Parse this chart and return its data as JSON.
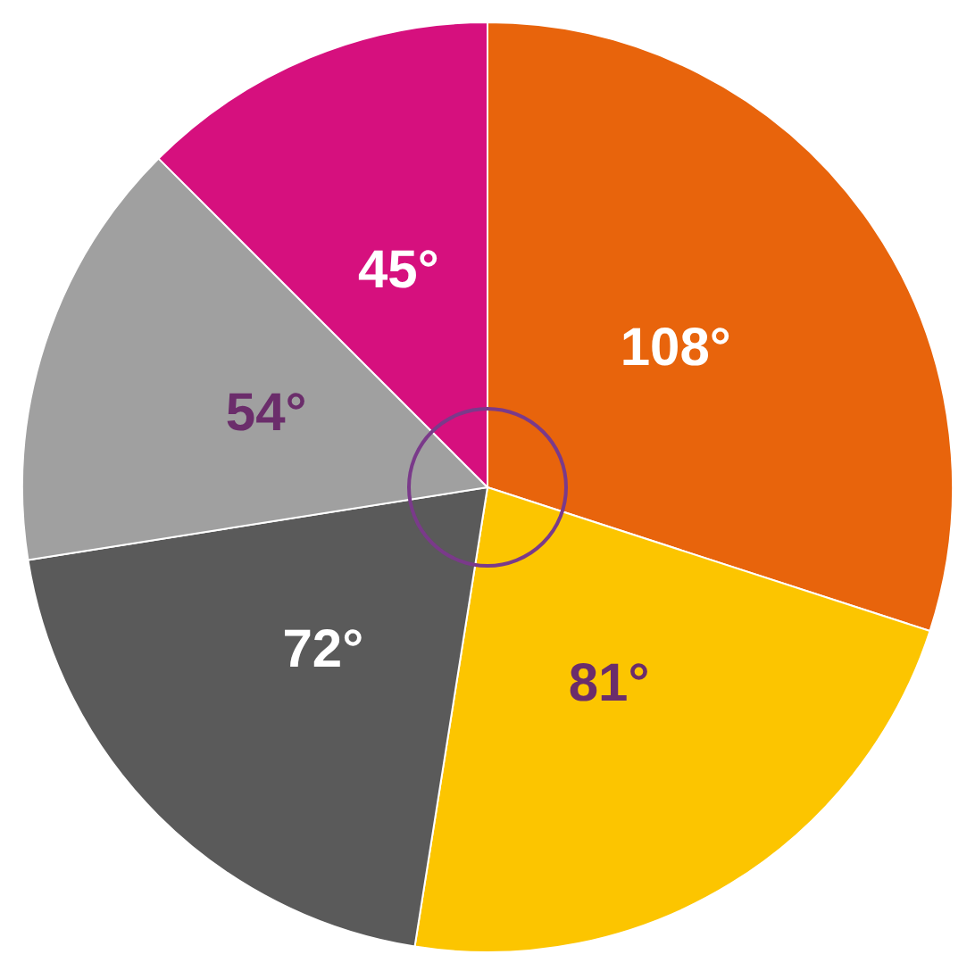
{
  "chart_data": {
    "type": "pie",
    "categories": [
      null,
      null,
      null,
      null,
      null
    ],
    "values": [
      108,
      81,
      72,
      54,
      45
    ],
    "value_labels": [
      "108°",
      "81°",
      "72°",
      "54°",
      "45°"
    ],
    "colors": [
      "#e8640c",
      "#fcc500",
      "#5a5a5a",
      "#a0a0a0",
      "#d6107e"
    ],
    "legend": false
  }
}
